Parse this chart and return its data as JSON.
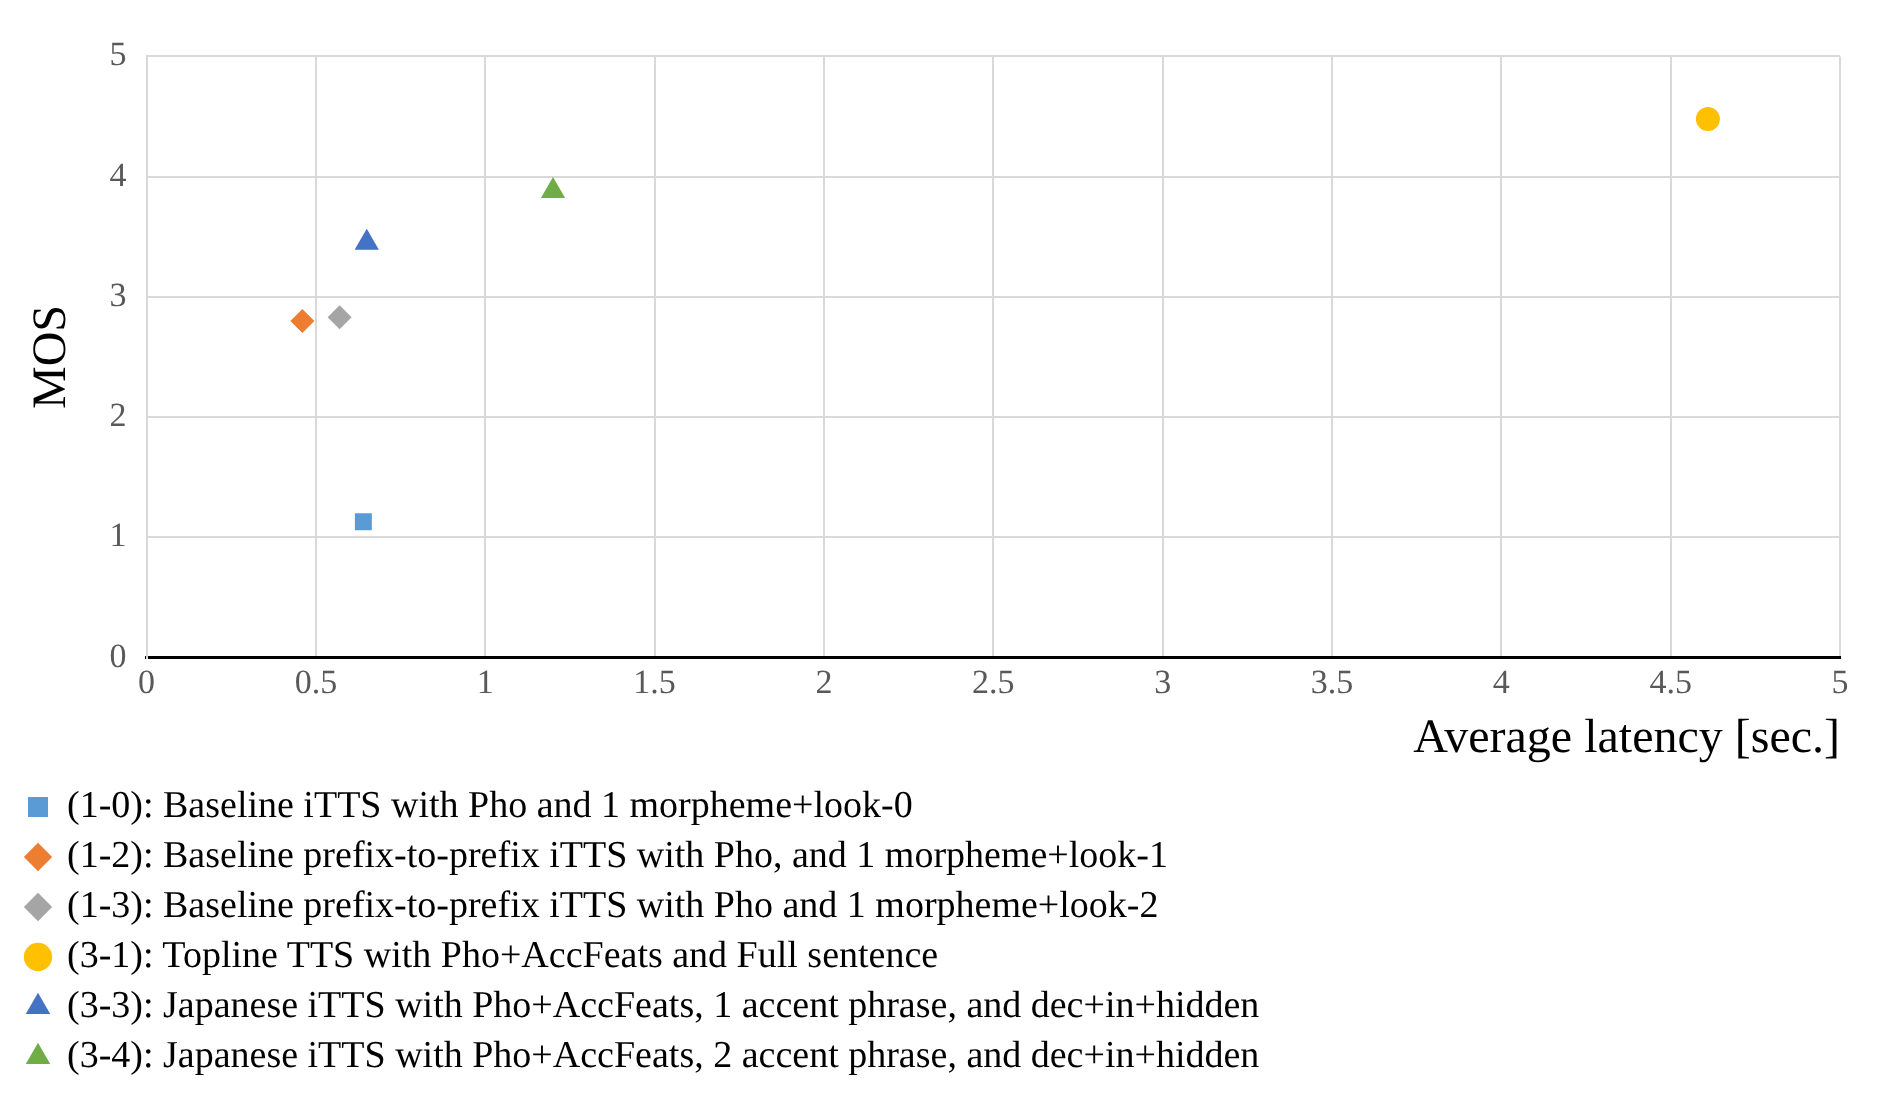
{
  "chart_data": {
    "type": "scatter",
    "xlabel": "Average latency [sec.]",
    "ylabel": "MOS",
    "xlim": [
      0,
      5
    ],
    "xticks": [
      0,
      0.5,
      1,
      1.5,
      2,
      2.5,
      3,
      3.5,
      4,
      4.5,
      5
    ],
    "ylim": [
      0,
      5
    ],
    "yticks": [
      0,
      1,
      2,
      3,
      4,
      5
    ],
    "grid": true,
    "legend": "bottom",
    "series": [
      {
        "name": "(1-0): Baseline iTTS with Pho and 1 morpheme+look-0",
        "color": "#5b9bd5",
        "marker": "square",
        "x": [
          0.64
        ],
        "values": [
          1.13
        ]
      },
      {
        "name": "(1-2): Baseline prefix-to-prefix iTTS with Pho, and 1 morpheme+look-1",
        "color": "#ed7d31",
        "marker": "diamond",
        "x": [
          0.46
        ],
        "values": [
          2.8
        ]
      },
      {
        "name": "(1-3): Baseline prefix-to-prefix iTTS with Pho and 1 morpheme+look-2",
        "color": "#a5a5a5",
        "marker": "diamond",
        "x": [
          0.57
        ],
        "values": [
          2.83
        ]
      },
      {
        "name": "(3-1): Topline TTS with Pho+AccFeats and Full sentence",
        "color": "#ffc000",
        "marker": "circle",
        "x": [
          4.61
        ],
        "values": [
          4.48
        ]
      },
      {
        "name": "(3-3): Japanese iTTS with Pho+AccFeats, 1 accent phrase, and dec+in+hidden",
        "color": "#4472c4",
        "marker": "triangle",
        "x": [
          0.65
        ],
        "values": [
          3.45
        ]
      },
      {
        "name": "(3-4): Japanese iTTS with Pho+AccFeats, 2 accent phrase, and dec+in+hidden",
        "color": "#70ad47",
        "marker": "triangle",
        "x": [
          1.2
        ],
        "values": [
          3.88
        ]
      }
    ]
  }
}
